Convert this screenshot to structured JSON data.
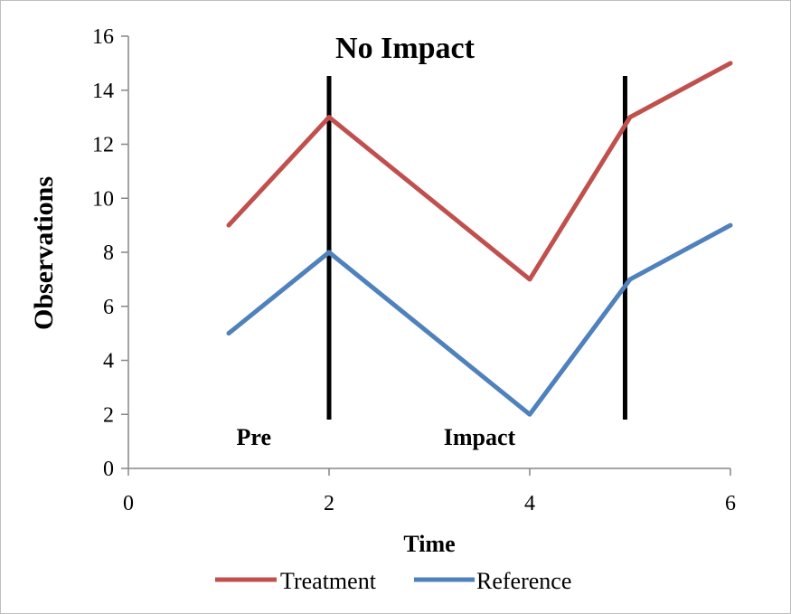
{
  "chart_data": {
    "type": "line",
    "title": "No Impact",
    "xlabel": "Time",
    "ylabel": "Observations",
    "xlim": [
      0,
      6
    ],
    "ylim": [
      0,
      16
    ],
    "xticks": [
      0,
      2,
      4,
      6
    ],
    "yticks": [
      0,
      2,
      4,
      6,
      8,
      10,
      12,
      14,
      16
    ],
    "grid": false,
    "legend_position": "bottom",
    "series": [
      {
        "name": "Treatment",
        "color": "#c0504d",
        "x": [
          1,
          2,
          4,
          5,
          6
        ],
        "y": [
          9,
          13,
          7,
          13,
          15
        ]
      },
      {
        "name": "Reference",
        "color": "#4f81bd",
        "x": [
          1,
          2,
          4,
          5,
          6
        ],
        "y": [
          5,
          8,
          2,
          7,
          9
        ]
      }
    ],
    "vertical_lines": [
      {
        "x": 2,
        "color": "#000000"
      },
      {
        "x": 4.95,
        "color": "#000000"
      }
    ],
    "annotations": [
      {
        "text": "Pre",
        "x": 1.25,
        "y": 1.1
      },
      {
        "text": "Impact",
        "x": 3.5,
        "y": 1.1
      }
    ]
  }
}
